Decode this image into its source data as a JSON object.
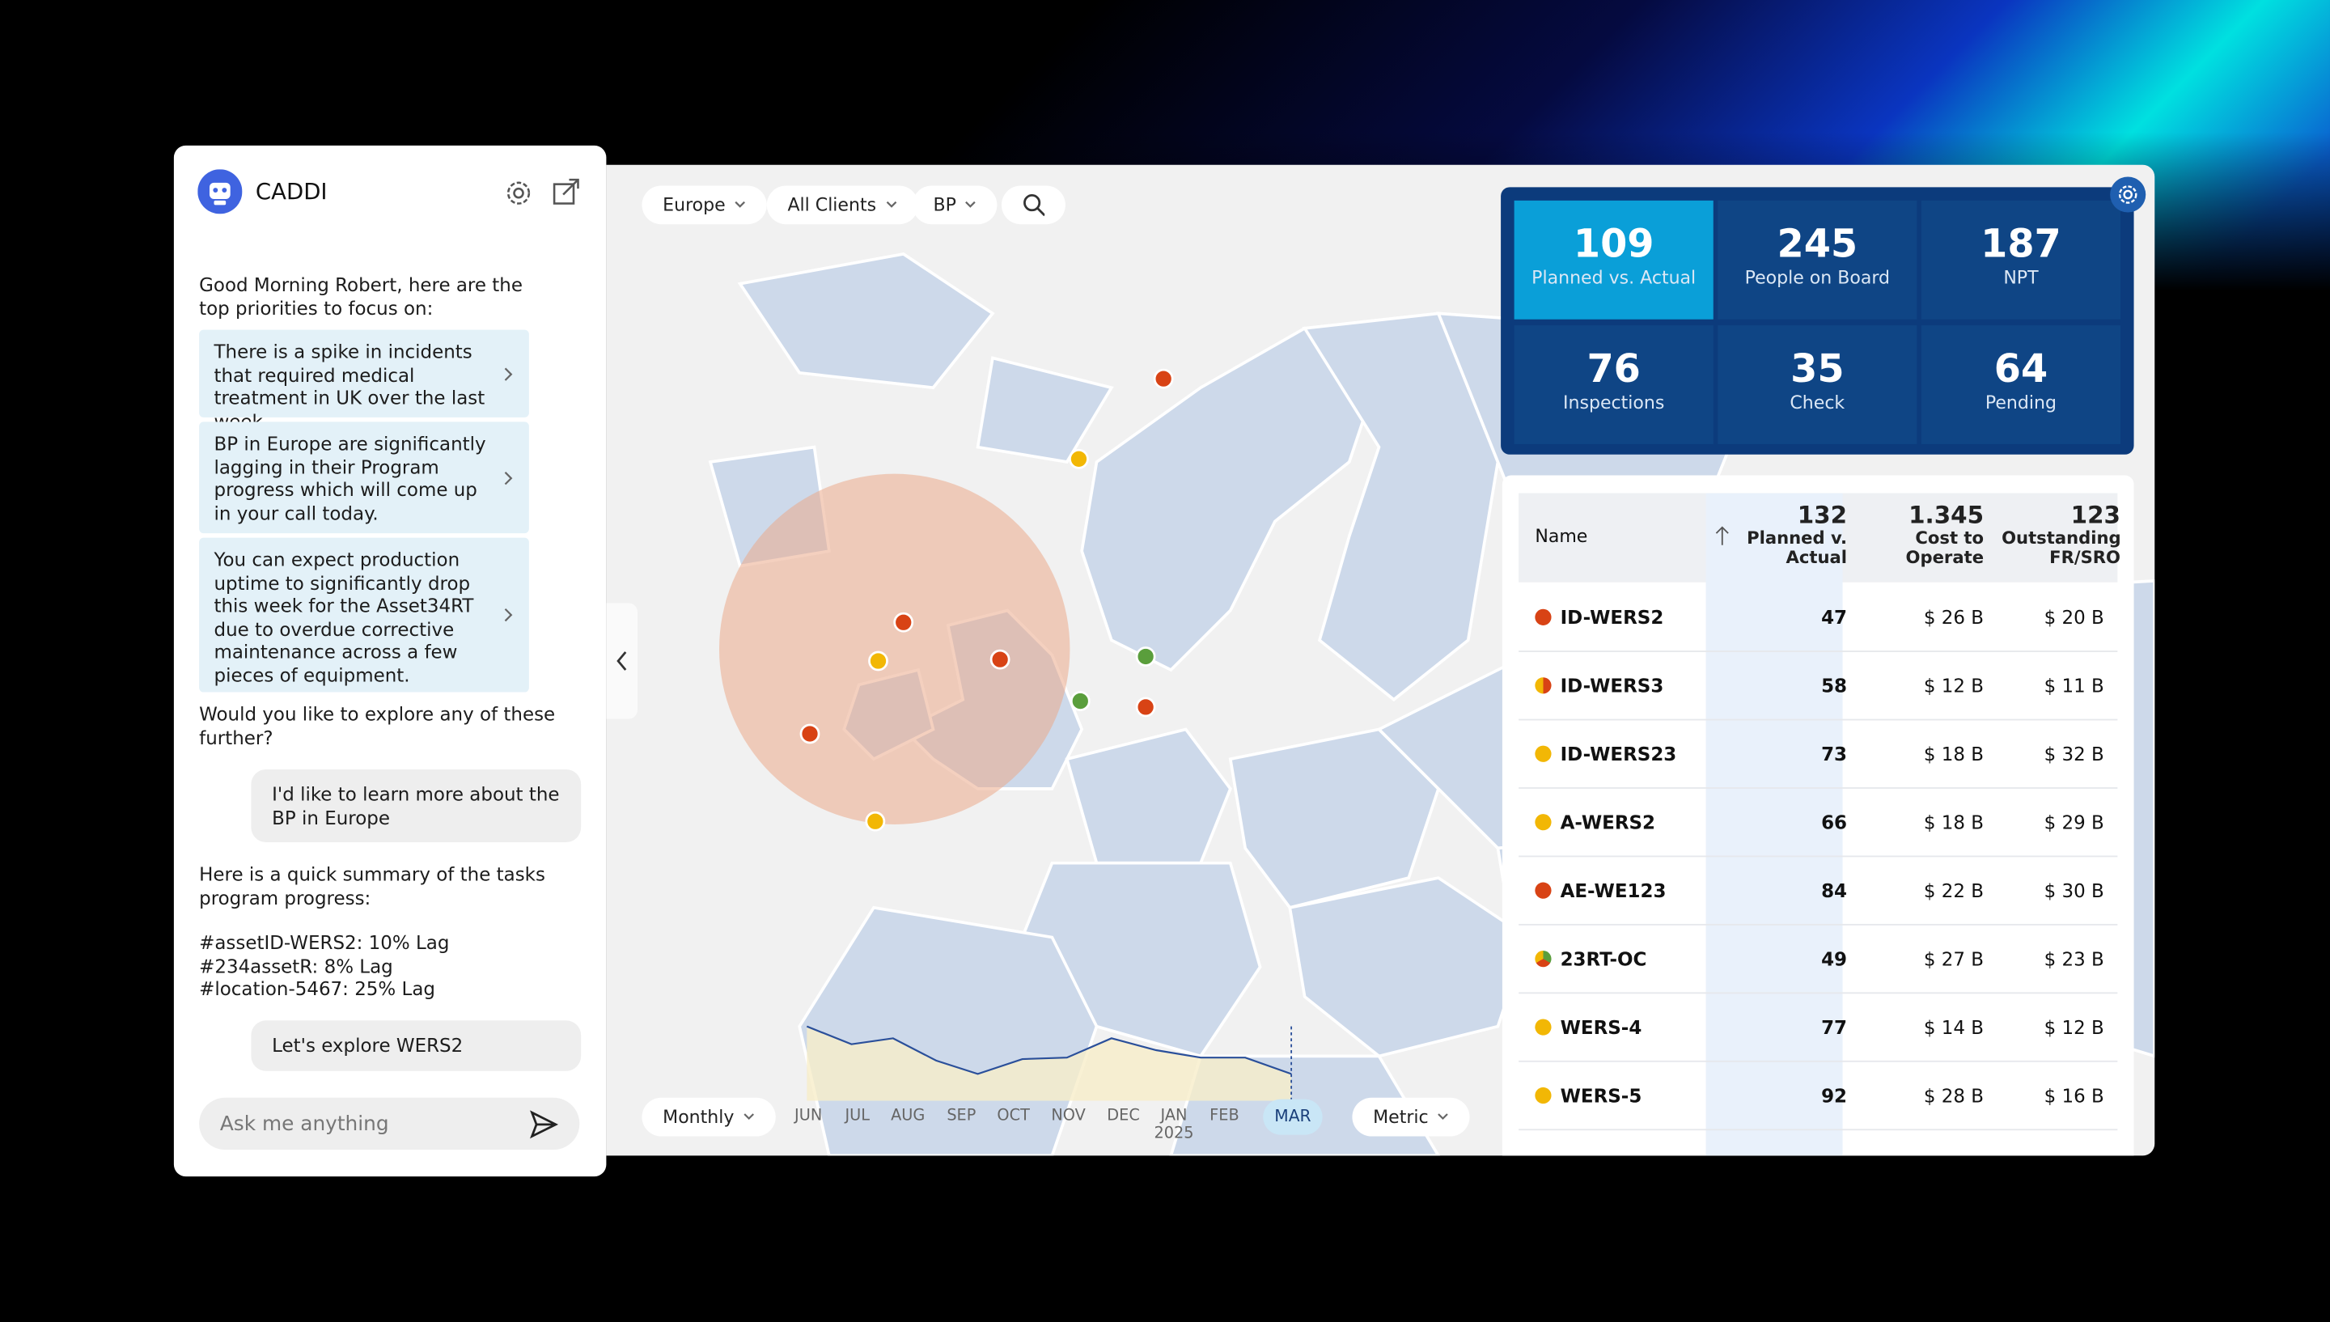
{
  "chat": {
    "title": "CADDI",
    "greeting": "Good Morning Robert, here are the top priorities to focus on:",
    "priorities": [
      "There is a spike in incidents that required medical treatment in UK over the last week.",
      "BP in Europe are significantly lagging in their Program progress which will come up in your call today.",
      "You can expect production uptime to significantly drop this week for the Asset34RT due to overdue corrective maintenance across a few pieces of equipment."
    ],
    "question": "Would you like to explore any of these further?",
    "user_message_1": "I'd like to learn more about the BP in Europe",
    "summary_intro": "Here is a quick summary of the tasks program progress:",
    "summary_lines": [
      "#assetID-WERS2: 10% Lag",
      "#234assetR: 8% Lag",
      "#location-5467: 25% Lag"
    ],
    "user_message_2": "Let's explore WERS2",
    "input_placeholder": "Ask me anything"
  },
  "filters": [
    "Europe",
    "All Clients",
    "BP"
  ],
  "kpis": [
    {
      "value": 109,
      "label": "Planned vs. Actual"
    },
    {
      "value": 245,
      "label": "People on Board"
    },
    {
      "value": 187,
      "label": "NPT"
    },
    {
      "value": 76,
      "label": "Inspections"
    },
    {
      "value": 35,
      "label": "Check"
    },
    {
      "value": 64,
      "label": "Pending"
    }
  ],
  "table": {
    "name_header": "Name",
    "columns": [
      {
        "total": "132",
        "label": "Planned v. Actual"
      },
      {
        "total": "1.345",
        "label": "Cost to Operate"
      },
      {
        "total": "123",
        "label": "Outstanding FR/SRO"
      }
    ],
    "rows": [
      {
        "name": "ID-WERS2",
        "dot": [
          "#d84315"
        ],
        "planned": 47,
        "cost": "$ 26 B",
        "outstanding": "$ 20 B"
      },
      {
        "name": "ID-WERS3",
        "dot": [
          "#d84315",
          "#f2b705"
        ],
        "planned": 58,
        "cost": "$ 12 B",
        "outstanding": "$ 11 B"
      },
      {
        "name": "ID-WERS23",
        "dot": [
          "#f2b705"
        ],
        "planned": 73,
        "cost": "$ 18 B",
        "outstanding": "$ 32 B"
      },
      {
        "name": "A-WERS2",
        "dot": [
          "#f2b705"
        ],
        "planned": 66,
        "cost": "$ 18 B",
        "outstanding": "$ 29 B"
      },
      {
        "name": "AE-WE123",
        "dot": [
          "#d84315"
        ],
        "planned": 84,
        "cost": "$ 22 B",
        "outstanding": "$ 30 B"
      },
      {
        "name": "23RT-OC",
        "dot": [
          "#5a9e3c",
          "#d84315",
          "#f2b705"
        ],
        "planned": 49,
        "cost": "$ 27 B",
        "outstanding": "$ 23 B"
      },
      {
        "name": "WERS-4",
        "dot": [
          "#f2b705"
        ],
        "planned": 77,
        "cost": "$ 14 B",
        "outstanding": "$ 12 B"
      },
      {
        "name": "WERS-5",
        "dot": [
          "#f2b705"
        ],
        "planned": 92,
        "cost": "$ 28 B",
        "outstanding": "$ 16 B"
      }
    ]
  },
  "timeline": {
    "period": "Monthly",
    "months": [
      "JUN",
      "JUL",
      "AUG",
      "SEP",
      "OCT",
      "NOV",
      "DEC",
      "JAN",
      "FEB",
      "MAR"
    ],
    "year": "2025",
    "metric": "Metric"
  }
}
